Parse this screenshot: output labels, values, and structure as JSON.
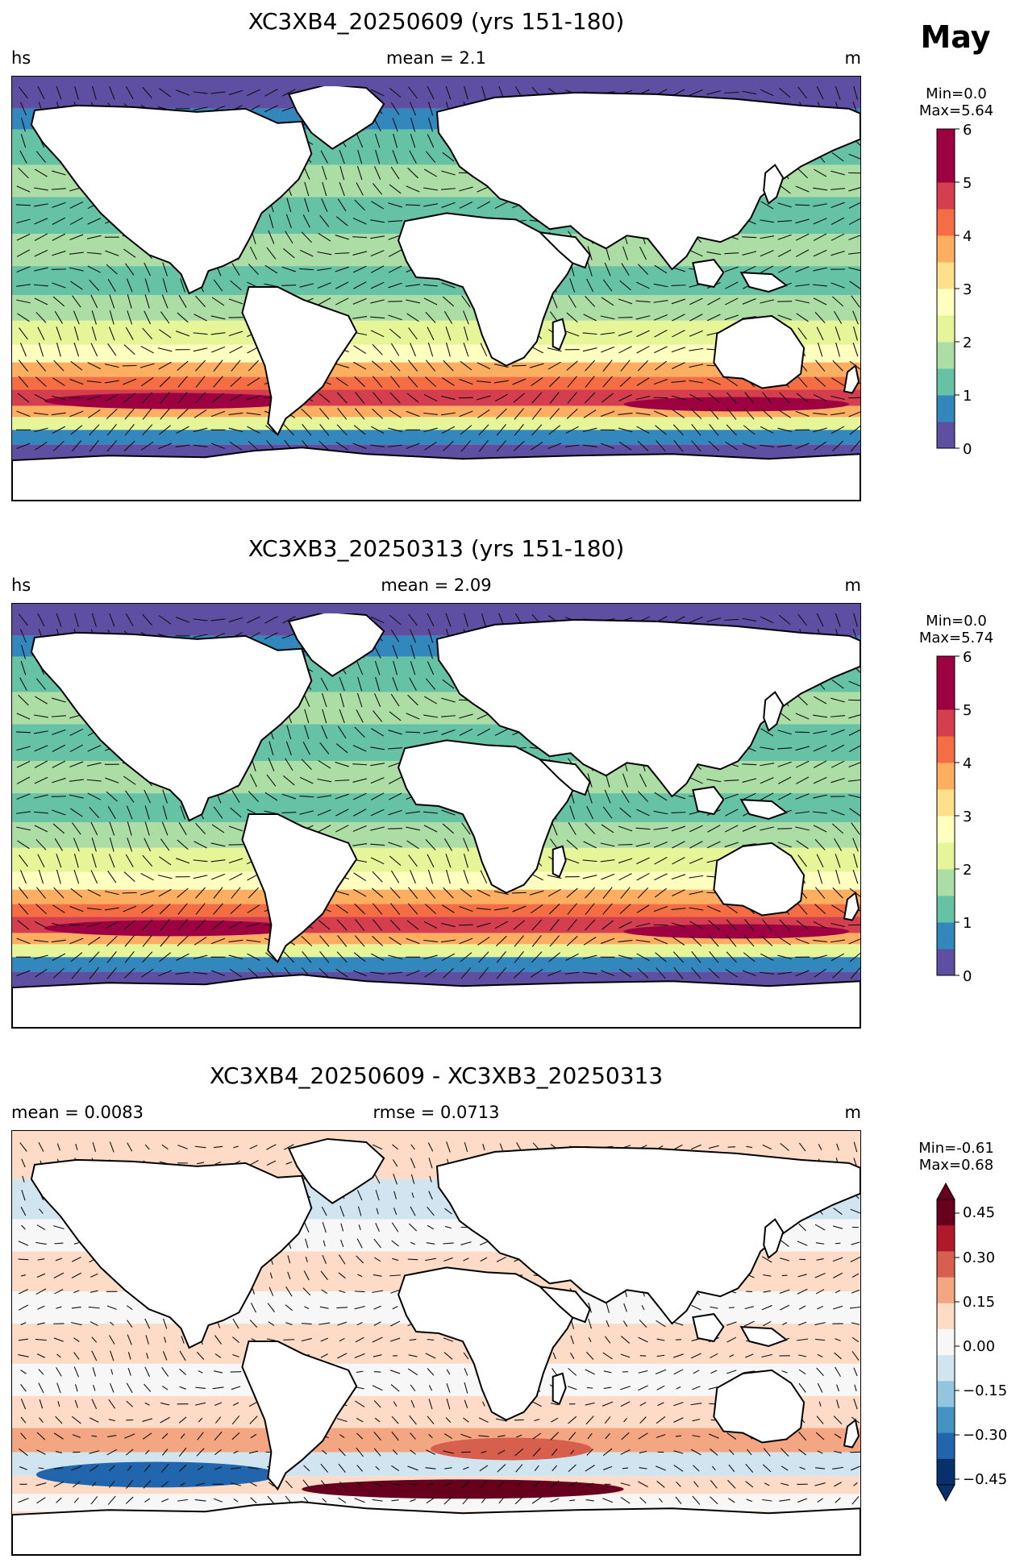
{
  "figure": {
    "month": "May"
  },
  "panels": [
    {
      "title": "XC3XB4_20250609 (yrs 151-180)",
      "left_label": "hs",
      "center_label": "mean = 2.1",
      "right_label": "m",
      "colorbar": {
        "min_label": "Min=0.0",
        "max_label": "Max=5.64",
        "ticks": [
          "0",
          "1",
          "2",
          "3",
          "4",
          "5",
          "6"
        ]
      }
    },
    {
      "title": "XC3XB3_20250313 (yrs 151-180)",
      "left_label": "hs",
      "center_label": "mean = 2.09",
      "right_label": "m",
      "colorbar": {
        "min_label": "Min=0.0",
        "max_label": "Max=5.74",
        "ticks": [
          "0",
          "1",
          "2",
          "3",
          "4",
          "5",
          "6"
        ]
      }
    },
    {
      "title": "XC3XB4_20250609 - XC3XB3_20250313",
      "left_label": "mean = 0.0083",
      "center_label": "rmse = 0.0713",
      "right_label": "m",
      "colorbar": {
        "min_label": "Min=-0.61",
        "max_label": "Max=0.68",
        "ticks": [
          "0.45",
          "0.30",
          "0.15",
          "0.00",
          "−0.15",
          "−0.30",
          "−0.45"
        ]
      }
    }
  ],
  "colormaps": {
    "spectral_r": [
      "#5e4fa2",
      "#3288bd",
      "#66c2a5",
      "#abdda4",
      "#e6f598",
      "#ffffbf",
      "#fee08b",
      "#fdae61",
      "#f46d43",
      "#d53e4f",
      "#9e0142"
    ],
    "rdbu_r": [
      "#08306b",
      "#2166ac",
      "#4393c3",
      "#92c5de",
      "#d1e5f0",
      "#f7f7f7",
      "#fddbc7",
      "#f4a582",
      "#d6604d",
      "#b2182b",
      "#67001f"
    ]
  }
}
